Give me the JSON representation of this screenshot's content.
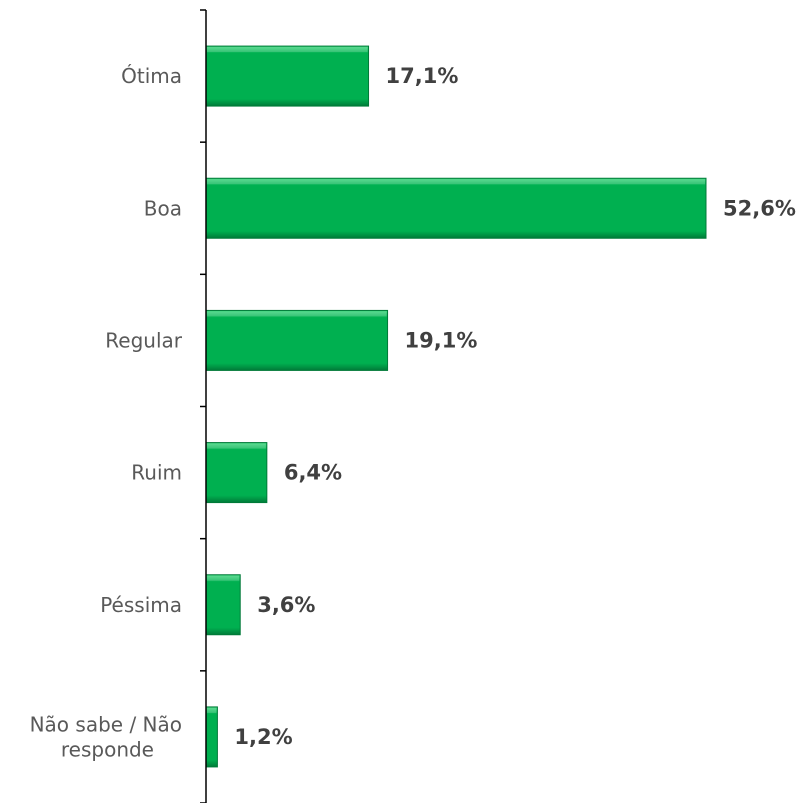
{
  "chart_data": {
    "type": "bar",
    "orientation": "horizontal",
    "categories": [
      "Ótima",
      "Boa",
      "Regular",
      "Ruim",
      "Péssima",
      "Não sabe / Não responde"
    ],
    "category_lines": [
      [
        "Ótima"
      ],
      [
        "Boa"
      ],
      [
        "Regular"
      ],
      [
        "Ruim"
      ],
      [
        "Péssima"
      ],
      [
        "Não sabe / Não",
        "responde"
      ]
    ],
    "values": [
      17.1,
      52.6,
      19.1,
      6.4,
      3.6,
      1.2
    ],
    "value_labels": [
      "17,1%",
      "52,6%",
      "19,1%",
      "6,4%",
      "3,6%",
      "1,2%"
    ],
    "title": "",
    "xlabel": "",
    "ylabel": "",
    "xlim": [
      0,
      60
    ],
    "grid": false,
    "legend": "none",
    "colors": {
      "bar_fill": "#00b050",
      "bar_light": "#3fd67e",
      "bar_dark": "#007a38",
      "axis": "#000000"
    }
  }
}
